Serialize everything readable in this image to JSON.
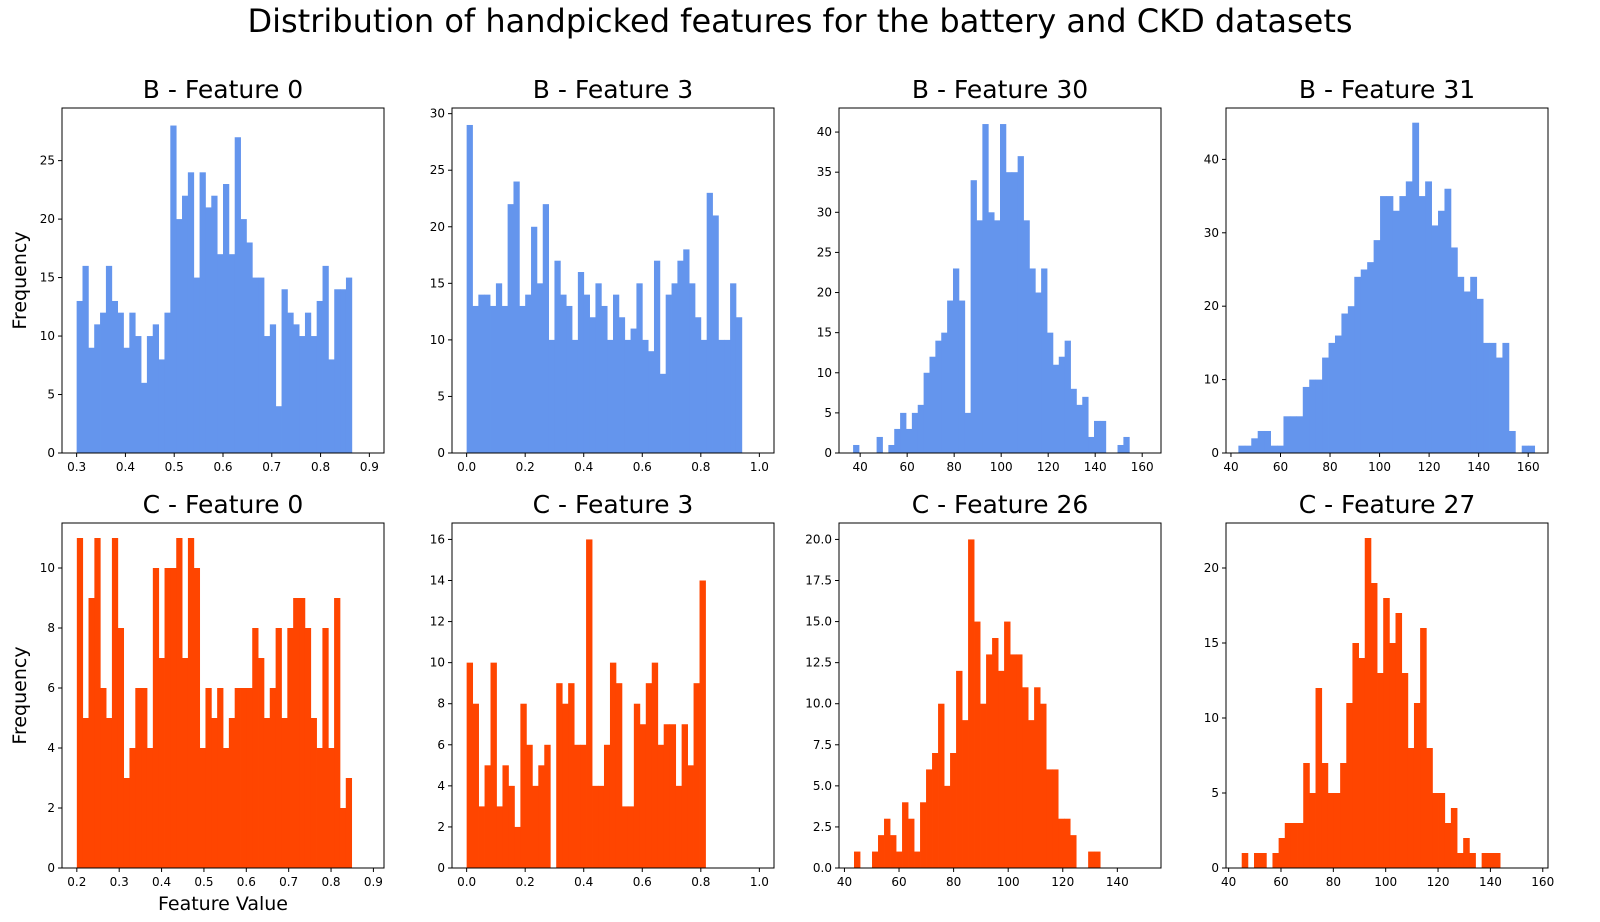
{
  "suptitle": "Distribution of handpicked features for the battery and CKD datasets",
  "colors": {
    "battery": "#6495ED",
    "ckd": "#FF4500"
  },
  "chart_data": [
    {
      "type": "bar",
      "title": "B - Feature 0",
      "ylabel": "Frequency",
      "xlabel": "",
      "color": "#6495ED",
      "xlim": [
        0.27,
        0.93
      ],
      "ylim": [
        0,
        29.5
      ],
      "xticks": [
        0.3,
        0.4,
        0.5,
        0.6,
        0.7,
        0.8,
        0.9
      ],
      "xtick_labels": [
        "0.3",
        "0.4",
        "0.5",
        "0.6",
        "0.7",
        "0.8",
        "0.9"
      ],
      "yticks": [
        0,
        5,
        10,
        15,
        20,
        25
      ],
      "ytick_labels": [
        "0",
        "5",
        "10",
        "15",
        "20",
        "25"
      ],
      "bin_start": 0.3,
      "bin_width": 0.012,
      "values": [
        13,
        16,
        9,
        11,
        12,
        16,
        13,
        12,
        9,
        12,
        10,
        6,
        10,
        11,
        8,
        12,
        28,
        20,
        22,
        24,
        15,
        24,
        21,
        22,
        17,
        23,
        17,
        27,
        20,
        18,
        15,
        15,
        10,
        11,
        4,
        14,
        12,
        11,
        10,
        12,
        10,
        13,
        16,
        8,
        14,
        14,
        15
      ]
    },
    {
      "type": "bar",
      "title": "B - Feature 3",
      "ylabel": "",
      "xlabel": "",
      "color": "#6495ED",
      "xlim": [
        -0.05,
        1.05
      ],
      "ylim": [
        0,
        30.5
      ],
      "xticks": [
        0.0,
        0.2,
        0.4,
        0.6,
        0.8,
        1.0
      ],
      "xtick_labels": [
        "0.0",
        "0.2",
        "0.4",
        "0.6",
        "0.8",
        "1.0"
      ],
      "yticks": [
        0,
        5,
        10,
        15,
        20,
        25,
        30
      ],
      "ytick_labels": [
        "0",
        "5",
        "10",
        "15",
        "20",
        "25",
        "30"
      ],
      "bin_start": 0.0,
      "bin_width": 0.02,
      "values": [
        29,
        13,
        14,
        14,
        13,
        15,
        13,
        22,
        24,
        13,
        14,
        20,
        15,
        22,
        10,
        17,
        14,
        13,
        10,
        16,
        14,
        12,
        15,
        13,
        10,
        14,
        12,
        10,
        11,
        15,
        10,
        9,
        17,
        7,
        14,
        15,
        17,
        18,
        15,
        12,
        10,
        23,
        21,
        10,
        10,
        15,
        12
      ]
    },
    {
      "type": "bar",
      "title": "B - Feature 30",
      "ylabel": "",
      "xlabel": "",
      "color": "#6495ED",
      "xlim": [
        31,
        168
      ],
      "ylim": [
        0,
        43
      ],
      "xticks": [
        40,
        60,
        80,
        100,
        120,
        140,
        160
      ],
      "xtick_labels": [
        "40",
        "60",
        "80",
        "100",
        "120",
        "140",
        "160"
      ],
      "yticks": [
        0,
        5,
        10,
        15,
        20,
        25,
        30,
        35,
        40
      ],
      "ytick_labels": [
        "0",
        "5",
        "10",
        "15",
        "20",
        "25",
        "30",
        "35",
        "40"
      ],
      "bin_start": 37,
      "bin_width": 2.5,
      "values": [
        1,
        0,
        0,
        0,
        2,
        0,
        1,
        3,
        5,
        3,
        5,
        6,
        10,
        12,
        14,
        15,
        19,
        23,
        19,
        5,
        34,
        29,
        41,
        30,
        29,
        41,
        35,
        35,
        37,
        29,
        23,
        20,
        23,
        15,
        11,
        12,
        14,
        8,
        6,
        7,
        2,
        4,
        4,
        0,
        0,
        1,
        2
      ]
    },
    {
      "type": "bar",
      "title": "B - Feature 31",
      "ylabel": "",
      "xlabel": "",
      "color": "#6495ED",
      "xlim": [
        38,
        168
      ],
      "ylim": [
        0,
        47
      ],
      "xticks": [
        40,
        60,
        80,
        100,
        120,
        140,
        160
      ],
      "xtick_labels": [
        "40",
        "60",
        "80",
        "100",
        "120",
        "140",
        "160"
      ],
      "yticks": [
        0,
        10,
        20,
        30,
        40
      ],
      "ytick_labels": [
        "0",
        "10",
        "20",
        "30",
        "40"
      ],
      "bin_start": 43,
      "bin_width": 2.6,
      "values": [
        1,
        1,
        2,
        3,
        3,
        1,
        1,
        5,
        5,
        5,
        9,
        10,
        10,
        13,
        15,
        16,
        19,
        20,
        24,
        25,
        26,
        29,
        35,
        35,
        33,
        35,
        37,
        45,
        35,
        37,
        31,
        33,
        36,
        28,
        24,
        22,
        24,
        21,
        15,
        15,
        13,
        15,
        3,
        0,
        1,
        1,
        0,
        0
      ]
    },
    {
      "type": "bar",
      "title": "C - Feature 0",
      "ylabel": "Frequency",
      "xlabel": "Feature Value",
      "color": "#FF4500",
      "xlim": [
        0.165,
        0.925
      ],
      "ylim": [
        0,
        11.5
      ],
      "xticks": [
        0.2,
        0.3,
        0.4,
        0.5,
        0.6,
        0.7,
        0.8,
        0.9
      ],
      "xtick_labels": [
        "0.2",
        "0.3",
        "0.4",
        "0.5",
        "0.6",
        "0.7",
        "0.8",
        "0.9"
      ],
      "yticks": [
        0,
        2,
        4,
        6,
        8,
        10
      ],
      "ytick_labels": [
        "0",
        "2",
        "4",
        "6",
        "8",
        "10"
      ],
      "bin_start": 0.2,
      "bin_width": 0.0138,
      "values": [
        11,
        5,
        9,
        11,
        6,
        5,
        11,
        8,
        3,
        4,
        6,
        6,
        4,
        10,
        7,
        10,
        10,
        11,
        7,
        11,
        10,
        4,
        6,
        5,
        6,
        4,
        5,
        6,
        6,
        6,
        8,
        7,
        5,
        6,
        8,
        5,
        8,
        9,
        9,
        8,
        5,
        4,
        8,
        4,
        9,
        2,
        3
      ]
    },
    {
      "type": "bar",
      "title": "C - Feature 3",
      "ylabel": "",
      "xlabel": "",
      "color": "#FF4500",
      "xlim": [
        -0.05,
        1.05
      ],
      "ylim": [
        0,
        16.8
      ],
      "xticks": [
        0.0,
        0.2,
        0.4,
        0.6,
        0.8,
        1.0
      ],
      "xtick_labels": [
        "0.0",
        "0.2",
        "0.4",
        "0.6",
        "0.8",
        "1.0"
      ],
      "yticks": [
        0,
        2,
        4,
        6,
        8,
        10,
        12,
        14,
        16
      ],
      "ytick_labels": [
        "0",
        "2",
        "4",
        "6",
        "8",
        "10",
        "12",
        "14",
        "16"
      ],
      "bin_start": 0.0,
      "bin_width": 0.0204,
      "values": [
        10,
        8,
        3,
        5,
        10,
        3,
        5,
        4,
        2,
        8,
        6,
        4,
        5,
        6,
        0,
        9,
        8,
        9,
        6,
        6,
        16,
        4,
        4,
        6,
        10,
        9,
        3,
        3,
        8,
        7,
        9,
        10,
        6,
        7,
        7,
        4,
        7,
        5,
        9,
        14
      ]
    },
    {
      "type": "bar",
      "title": "C - Feature 26",
      "ylabel": "",
      "xlabel": "",
      "color": "#FF4500",
      "xlim": [
        38,
        156
      ],
      "ylim": [
        0,
        21
      ],
      "xticks": [
        40,
        60,
        80,
        100,
        120,
        140
      ],
      "xtick_labels": [
        "40",
        "60",
        "80",
        "100",
        "120",
        "140"
      ],
      "yticks": [
        0,
        2.5,
        5.0,
        7.5,
        10.0,
        12.5,
        15.0,
        17.5,
        20.0
      ],
      "ytick_labels": [
        "0.0",
        "2.5",
        "5.0",
        "7.5",
        "10.0",
        "12.5",
        "15.0",
        "17.5",
        "20.0"
      ],
      "bin_start": 43.5,
      "bin_width": 2.2,
      "values": [
        1,
        0,
        0,
        1,
        2,
        3,
        2,
        1,
        4,
        3,
        1,
        4,
        6,
        7,
        10,
        5,
        7,
        12,
        9,
        20,
        15,
        10,
        13,
        14,
        12,
        15,
        13,
        13,
        11,
        9,
        11,
        10,
        6,
        6,
        3,
        3,
        2,
        0,
        0,
        1,
        1
      ]
    },
    {
      "type": "bar",
      "title": "C - Feature 27",
      "ylabel": "",
      "xlabel": "",
      "color": "#FF4500",
      "xlim": [
        39,
        162
      ],
      "ylim": [
        0,
        23
      ],
      "xticks": [
        40,
        60,
        80,
        100,
        120,
        140,
        160
      ],
      "xtick_labels": [
        "40",
        "60",
        "80",
        "100",
        "120",
        "140",
        "160"
      ],
      "yticks": [
        0,
        5,
        10,
        15,
        20
      ],
      "ytick_labels": [
        "0",
        "5",
        "10",
        "15",
        "20"
      ],
      "bin_start": 45,
      "bin_width": 2.35,
      "values": [
        1,
        0,
        1,
        1,
        0,
        1,
        2,
        3,
        3,
        3,
        7,
        5,
        12,
        7,
        5,
        5,
        7,
        11,
        15,
        14,
        22,
        19,
        13,
        18,
        15,
        17,
        13,
        8,
        11,
        16,
        8,
        5,
        5,
        3,
        4,
        1,
        2,
        1,
        0,
        1,
        1,
        1
      ]
    }
  ]
}
